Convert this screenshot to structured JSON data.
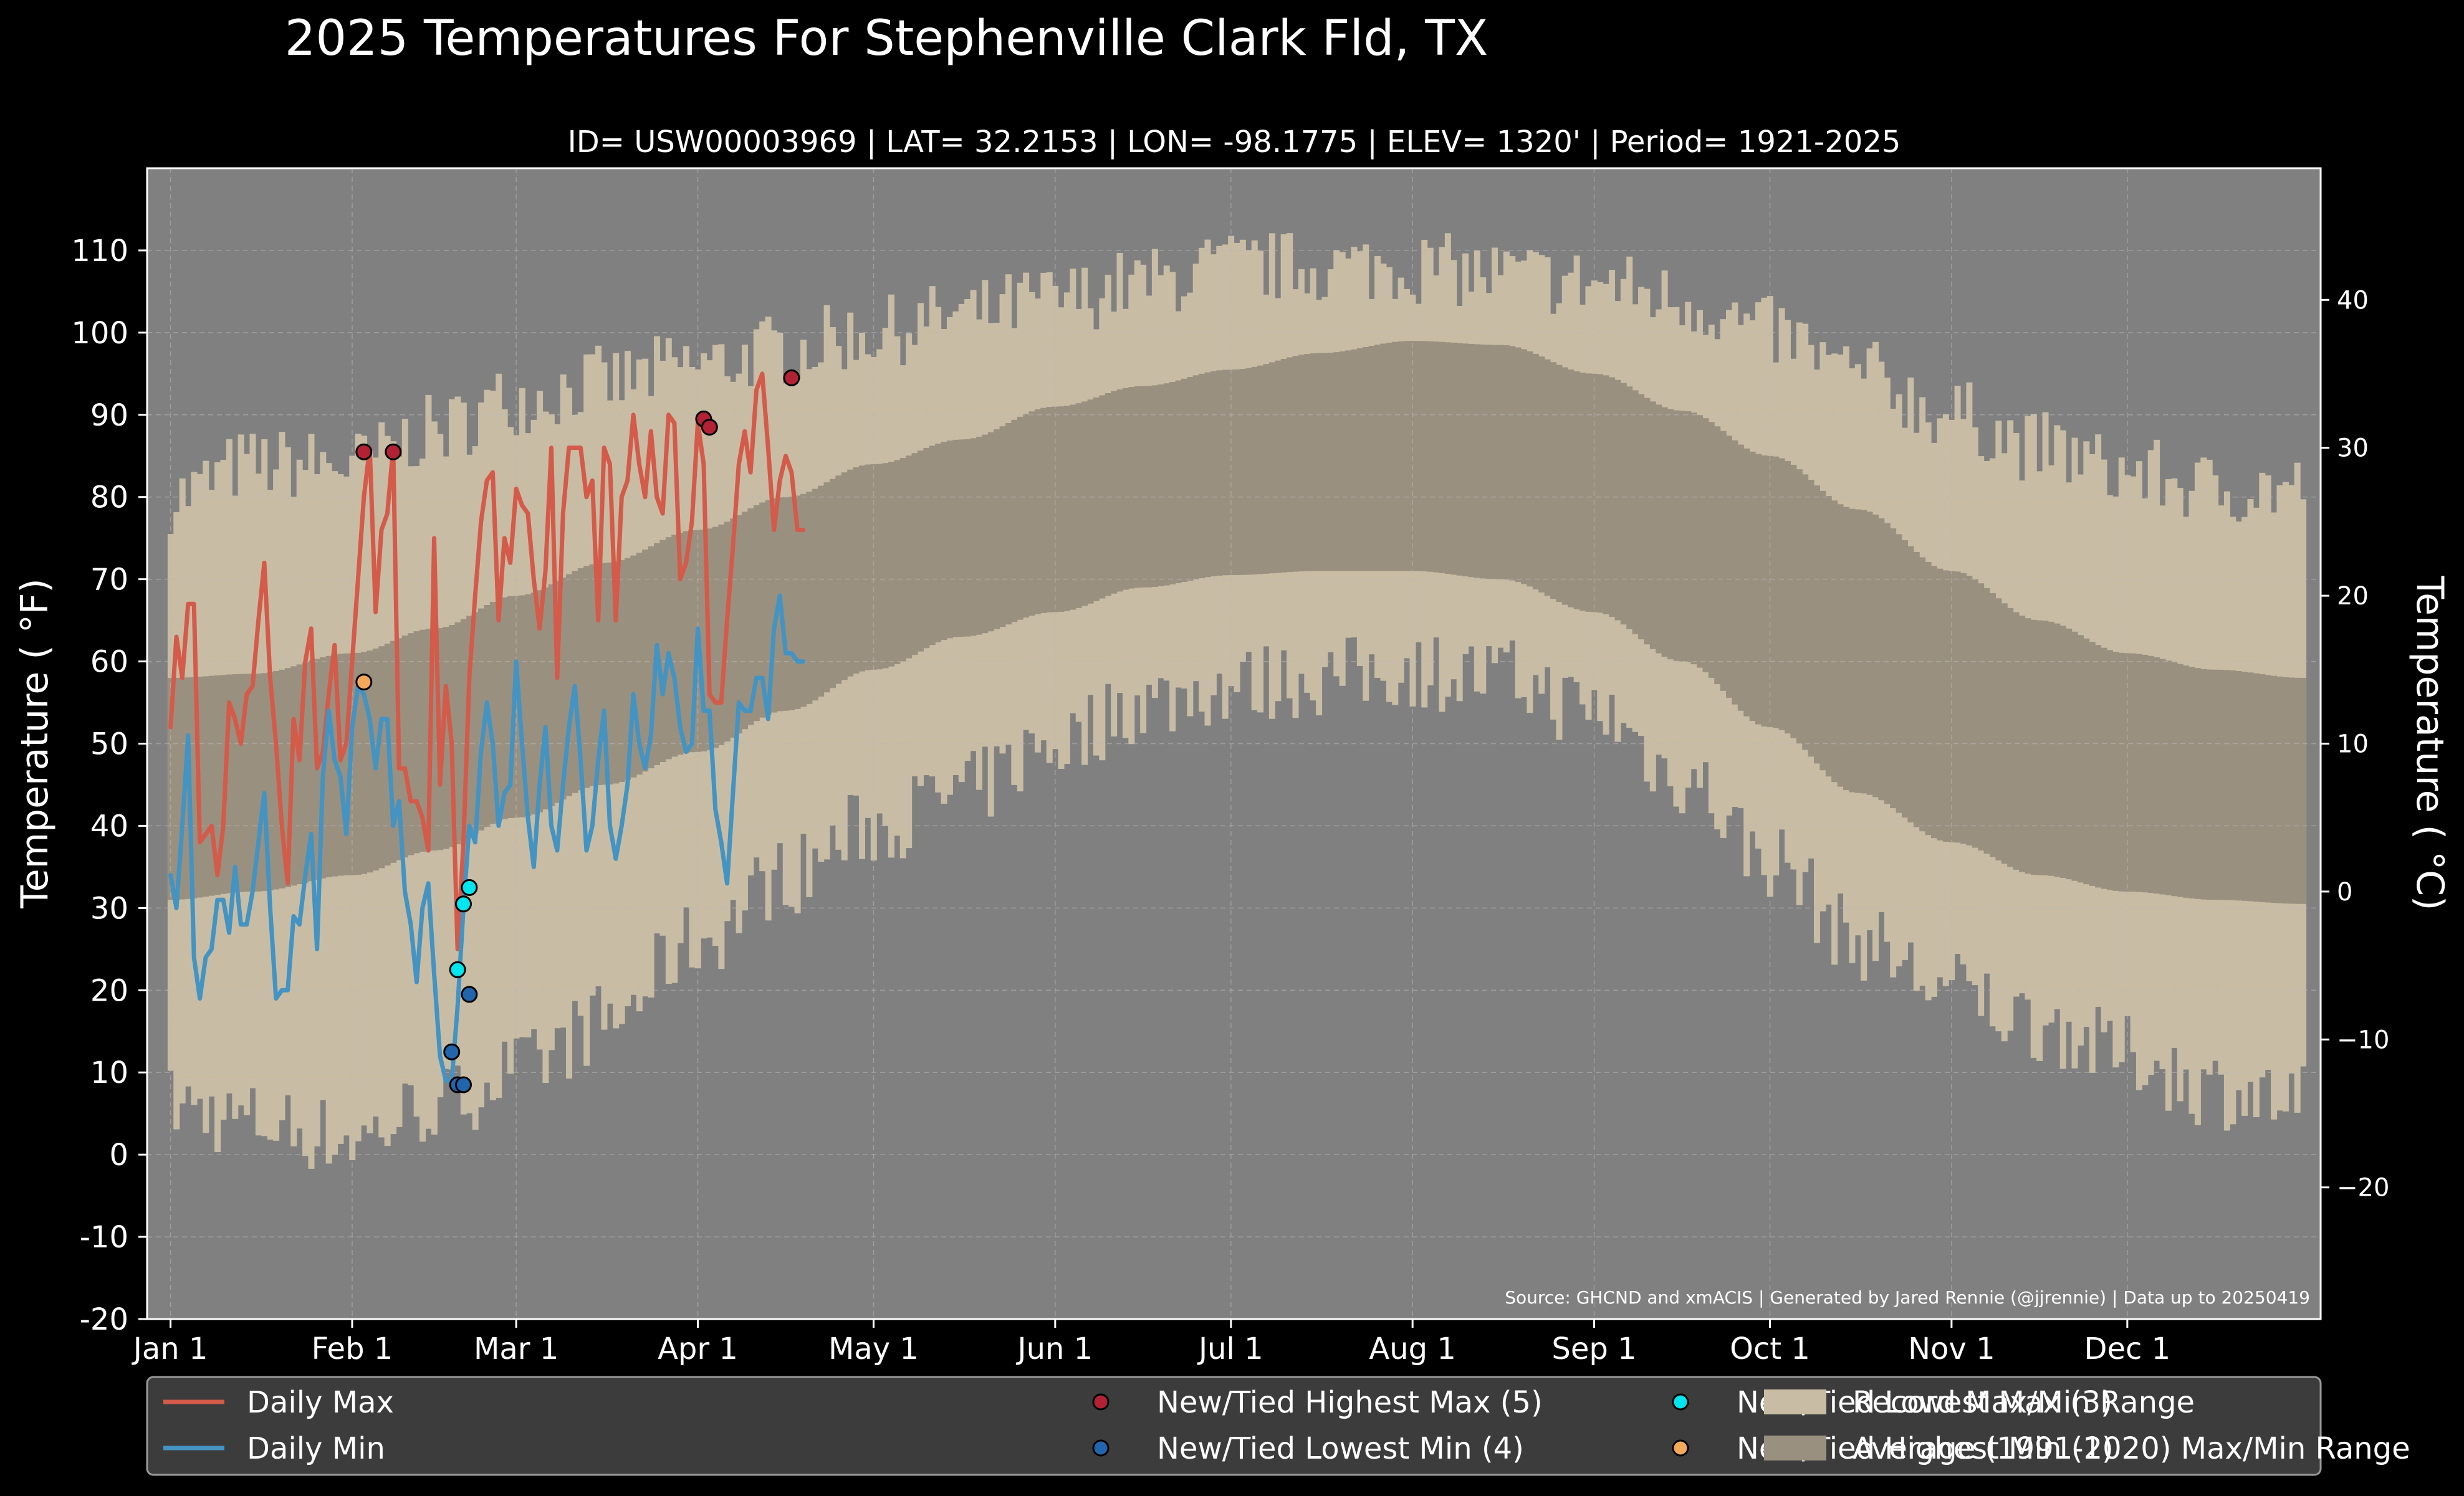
{
  "chart_data": {
    "type": "line",
    "title": "2025 Temperatures For Stephenville Clark Fld, TX",
    "subtitle": "ID= USW00003969 | LAT= 32.2153 | LON= -98.1775 | ELEV= 1320' | Period= 1921-2025",
    "ylabel_left": "Temperature ($^\\circ$F)",
    "ylabel_left_display": "Temperature ( °F)",
    "ylabel_right_display": "Temperature ( °C)",
    "ylim_f": [
      -20,
      120
    ],
    "ylim_c": [
      -28.9,
      48.9
    ],
    "xlim_doy": [
      -3,
      368
    ],
    "grid": true,
    "yticks_f": [
      -20,
      -10,
      0,
      10,
      20,
      30,
      40,
      50,
      60,
      70,
      80,
      90,
      100,
      110
    ],
    "ytick_labels_f": [
      "-20",
      "-10",
      "0",
      "10",
      "20",
      "30",
      "40",
      "50",
      "60",
      "70",
      "80",
      "90",
      "100",
      "110"
    ],
    "yticks_c": [
      -20,
      -10,
      0,
      10,
      20,
      30,
      40
    ],
    "ytick_labels_c": [
      "−20",
      "−10",
      "0",
      "10",
      "20",
      "30",
      "40"
    ],
    "xticks": [
      {
        "label": "Jan 1",
        "doy": 1
      },
      {
        "label": "Feb 1",
        "doy": 32
      },
      {
        "label": "Mar 1",
        "doy": 60
      },
      {
        "label": "Apr 1",
        "doy": 91
      },
      {
        "label": "May 1",
        "doy": 121
      },
      {
        "label": "Jun 1",
        "doy": 152
      },
      {
        "label": "Jul 1",
        "doy": 182
      },
      {
        "label": "Aug 1",
        "doy": 213
      },
      {
        "label": "Sep 1",
        "doy": 244
      },
      {
        "label": "Oct 1",
        "doy": 274
      },
      {
        "label": "Nov 1",
        "doy": 305
      },
      {
        "label": "Dec 1",
        "doy": 335
      }
    ],
    "record_max_anchors": [
      [
        1,
        80
      ],
      [
        15,
        84
      ],
      [
        32,
        84
      ],
      [
        46,
        88
      ],
      [
        60,
        92
      ],
      [
        75,
        94
      ],
      [
        91,
        96
      ],
      [
        106,
        98
      ],
      [
        121,
        100
      ],
      [
        136,
        102
      ],
      [
        152,
        104
      ],
      [
        167,
        106
      ],
      [
        182,
        108
      ],
      [
        197,
        108
      ],
      [
        213,
        108
      ],
      [
        228,
        107
      ],
      [
        244,
        106
      ],
      [
        259,
        104
      ],
      [
        274,
        100
      ],
      [
        289,
        95
      ],
      [
        305,
        90
      ],
      [
        320,
        86
      ],
      [
        335,
        83
      ],
      [
        350,
        81
      ],
      [
        365,
        81
      ]
    ],
    "record_min_anchors": [
      [
        1,
        6
      ],
      [
        15,
        4
      ],
      [
        32,
        2
      ],
      [
        46,
        6
      ],
      [
        60,
        10
      ],
      [
        75,
        16
      ],
      [
        91,
        26
      ],
      [
        106,
        34
      ],
      [
        121,
        40
      ],
      [
        136,
        44
      ],
      [
        152,
        50
      ],
      [
        167,
        55
      ],
      [
        182,
        57
      ],
      [
        197,
        58
      ],
      [
        213,
        59
      ],
      [
        228,
        58
      ],
      [
        244,
        54
      ],
      [
        259,
        46
      ],
      [
        274,
        36
      ],
      [
        289,
        26
      ],
      [
        305,
        20
      ],
      [
        320,
        16
      ],
      [
        335,
        12
      ],
      [
        350,
        8
      ],
      [
        365,
        6
      ]
    ],
    "average_max_anchors": [
      [
        1,
        58
      ],
      [
        15,
        58.5
      ],
      [
        32,
        61
      ],
      [
        46,
        64
      ],
      [
        60,
        68
      ],
      [
        75,
        72
      ],
      [
        91,
        76
      ],
      [
        106,
        80
      ],
      [
        121,
        84
      ],
      [
        136,
        87
      ],
      [
        152,
        91
      ],
      [
        167,
        93.5
      ],
      [
        182,
        95.5
      ],
      [
        197,
        97.5
      ],
      [
        213,
        99
      ],
      [
        228,
        98.5
      ],
      [
        244,
        95
      ],
      [
        259,
        90.5
      ],
      [
        274,
        85
      ],
      [
        289,
        78.5
      ],
      [
        305,
        71
      ],
      [
        320,
        65
      ],
      [
        335,
        61
      ],
      [
        350,
        59
      ],
      [
        365,
        58
      ]
    ],
    "average_min_anchors": [
      [
        1,
        31
      ],
      [
        15,
        32
      ],
      [
        32,
        34
      ],
      [
        46,
        37
      ],
      [
        60,
        41
      ],
      [
        75,
        45
      ],
      [
        91,
        49
      ],
      [
        106,
        54
      ],
      [
        121,
        59
      ],
      [
        136,
        63
      ],
      [
        152,
        66
      ],
      [
        167,
        69
      ],
      [
        182,
        70.5
      ],
      [
        197,
        71
      ],
      [
        213,
        71
      ],
      [
        228,
        70
      ],
      [
        244,
        66
      ],
      [
        259,
        60
      ],
      [
        274,
        52
      ],
      [
        289,
        44
      ],
      [
        305,
        38
      ],
      [
        320,
        34
      ],
      [
        335,
        32
      ],
      [
        350,
        31
      ],
      [
        365,
        30.5
      ]
    ],
    "series": [
      {
        "name": "Daily Max",
        "color": "#d45a4a",
        "x": [
          1,
          2,
          3,
          4,
          5,
          6,
          7,
          8,
          9,
          10,
          11,
          12,
          13,
          14,
          15,
          16,
          17,
          18,
          19,
          20,
          21,
          22,
          23,
          24,
          25,
          26,
          27,
          28,
          29,
          30,
          31,
          32,
          33,
          34,
          35,
          36,
          37,
          38,
          39,
          40,
          41,
          42,
          43,
          44,
          45,
          46,
          47,
          48,
          49,
          50,
          51,
          52,
          53,
          54,
          55,
          56,
          57,
          58,
          59,
          60,
          61,
          62,
          63,
          64,
          65,
          66,
          67,
          68,
          69,
          70,
          71,
          72,
          73,
          74,
          75,
          76,
          77,
          78,
          79,
          80,
          81,
          82,
          83,
          84,
          85,
          86,
          87,
          88,
          89,
          90,
          91,
          92,
          93,
          94,
          95,
          96,
          97,
          98,
          99,
          100,
          101,
          102,
          103,
          104,
          105,
          106,
          107,
          108,
          109
        ],
        "values": [
          52,
          63,
          58,
          67,
          67,
          38,
          39,
          40,
          34,
          40,
          55,
          53,
          50,
          56,
          57,
          65,
          72,
          58,
          50,
          40,
          33,
          53,
          48,
          60,
          64,
          47,
          49,
          56,
          62,
          48,
          50,
          60,
          70,
          80,
          86,
          66,
          76,
          78,
          86,
          47,
          47,
          43,
          43,
          41,
          37,
          75,
          45,
          57,
          50,
          25,
          38,
          58,
          68,
          77,
          82,
          83,
          65,
          75,
          72,
          81,
          79,
          78,
          70,
          64,
          71,
          86,
          58,
          78,
          86,
          86,
          86,
          80,
          82,
          65,
          86,
          84,
          65,
          80,
          82,
          90,
          84,
          80,
          88,
          80,
          78,
          90,
          89,
          70,
          72,
          77,
          89,
          84,
          56,
          55,
          55,
          65,
          74,
          84,
          88,
          83,
          93,
          95,
          86,
          76,
          82,
          85,
          83,
          76,
          76
        ]
      },
      {
        "name": "Daily Min",
        "color": "#4393c3",
        "x": [
          1,
          2,
          3,
          4,
          5,
          6,
          7,
          8,
          9,
          10,
          11,
          12,
          13,
          14,
          15,
          16,
          17,
          18,
          19,
          20,
          21,
          22,
          23,
          24,
          25,
          26,
          27,
          28,
          29,
          30,
          31,
          32,
          33,
          34,
          35,
          36,
          37,
          38,
          39,
          40,
          41,
          42,
          43,
          44,
          45,
          46,
          47,
          48,
          49,
          50,
          51,
          52,
          53,
          54,
          55,
          56,
          57,
          58,
          59,
          60,
          61,
          62,
          63,
          64,
          65,
          66,
          67,
          68,
          69,
          70,
          71,
          72,
          73,
          74,
          75,
          76,
          77,
          78,
          79,
          80,
          81,
          82,
          83,
          84,
          85,
          86,
          87,
          88,
          89,
          90,
          91,
          92,
          93,
          94,
          95,
          96,
          97,
          98,
          99,
          100,
          101,
          102,
          103,
          104,
          105,
          106,
          107,
          108,
          109
        ],
        "values": [
          34,
          30,
          40,
          51,
          24,
          19,
          24,
          25,
          31,
          31,
          27,
          35,
          28,
          28,
          32,
          38,
          44,
          30,
          19,
          20,
          20,
          29,
          28,
          34,
          39,
          25,
          46,
          54,
          48,
          46,
          39,
          52,
          57,
          56,
          53,
          47,
          53,
          53,
          40,
          43,
          32,
          28,
          21,
          30,
          33,
          22,
          12,
          9,
          9,
          18,
          30,
          40,
          38,
          49,
          55,
          50,
          40,
          44,
          45,
          60,
          50,
          41,
          35,
          45,
          52,
          40,
          37,
          45,
          52,
          57,
          48,
          37,
          40,
          48,
          54,
          40,
          36,
          40,
          45,
          56,
          50,
          47,
          51,
          62,
          56,
          61,
          58,
          52,
          49,
          50,
          64,
          54,
          54,
          42,
          38,
          33,
          44,
          55,
          54,
          54,
          58,
          58,
          53,
          64,
          68,
          61,
          61,
          60,
          60
        ]
      }
    ],
    "records": [
      {
        "name": "New/Tied Highest Max (5)",
        "color": "#b22234",
        "points": [
          [
            34,
            85.5
          ],
          [
            39,
            85.5
          ],
          [
            92,
            89.5
          ],
          [
            93,
            88.5
          ],
          [
            107,
            94.5
          ]
        ]
      },
      {
        "name": "New/Tied Lowest Min (4)",
        "color": "#2166ac",
        "points": [
          [
            49,
            12.5
          ],
          [
            50,
            8.5
          ],
          [
            51,
            8.5
          ],
          [
            52,
            19.5
          ]
        ]
      },
      {
        "name": "New/Tied Lowest Max (3)",
        "color": "#00e5ee",
        "points": [
          [
            50,
            22.5
          ],
          [
            51,
            30.5
          ],
          [
            52,
            32.5
          ]
        ]
      },
      {
        "name": "New/Tied Highest Min (1)",
        "color": "#f4a85a",
        "points": [
          [
            34,
            57.5
          ]
        ]
      }
    ],
    "legend": {
      "placement": "bottom",
      "items": [
        {
          "key": "max",
          "label": "Daily Max",
          "kind": "line",
          "color": "#d45a4a"
        },
        {
          "key": "min",
          "label": "Daily Min",
          "kind": "line",
          "color": "#4393c3"
        },
        {
          "key": "hmax",
          "label": "New/Tied Highest Max (5)",
          "kind": "dot",
          "color": "#b22234"
        },
        {
          "key": "lmin",
          "label": "New/Tied Lowest Min (4)",
          "kind": "dot",
          "color": "#2166ac"
        },
        {
          "key": "lmax",
          "label": "New/Tied Lowest Max (3)",
          "kind": "dot",
          "color": "#00e5ee"
        },
        {
          "key": "hmin",
          "label": "New/Tied Highest Min (1)",
          "kind": "dot",
          "color": "#f4a85a"
        },
        {
          "key": "rec",
          "label": "Record Max/Min Range",
          "kind": "patch",
          "color": "#c8bda4"
        },
        {
          "key": "avg",
          "label": "Average (1991-2020) Max/Min Range",
          "kind": "patch",
          "color": "#9a9080"
        }
      ]
    },
    "source_text": "Source: GHCND and xmACIS | Generated by Jared Rennie (@jjrennie) | Data up to 20250419",
    "colors": {
      "background": "#000000",
      "plot_background": "#808080",
      "record_range": "#c8bda4",
      "average_range": "#9a9080",
      "grid": "#b8b8b8",
      "legend_background": "#3c3c3c"
    }
  }
}
